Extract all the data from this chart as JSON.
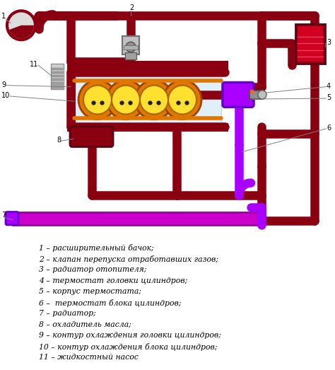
{
  "legend_items": [
    "1 – расширительный бачок;",
    "2 – клапан перепуска отработавших газов;",
    "3 – радиатор отопителя;",
    "4 – термостат головки цилиндров;",
    "5 – корпус термостата;",
    "6 –  термостат блока цилиндров;",
    "7 – радиатор;",
    "8 – охладитель масла;",
    "9 – контур охлаждения головки цилиндров;",
    "10 – контур охлаждения блока цилиндров;",
    "11 – жидкостный насос"
  ],
  "pc": "#8B0010",
  "purple": "#AA00FF",
  "magenta": "#CC00CC",
  "yellow": "#FFE030",
  "orange": "#E07800",
  "light_blue": "#E0EFFA",
  "white": "#FFFFFF",
  "bg_color": "#FFFFFF",
  "legend_fontsize": 7.8,
  "fig_width": 4.74,
  "fig_height": 5.23
}
